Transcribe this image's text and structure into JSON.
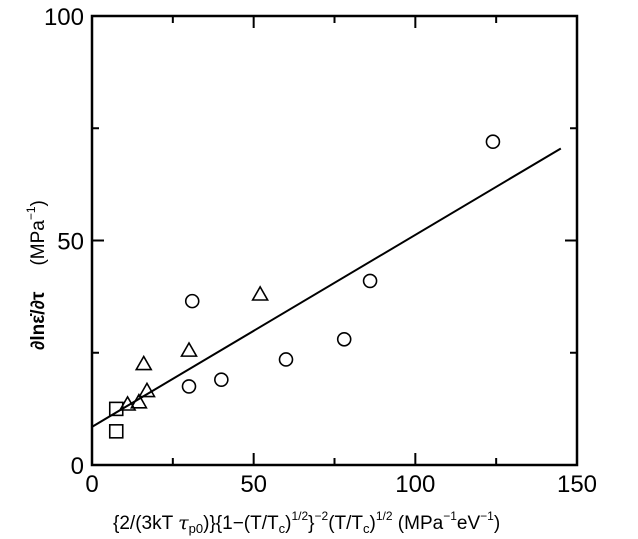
{
  "chart_data": {
    "type": "scatter",
    "xlabel": "{2/(3kT τp0)}{1−(T/Tc)^{1/2}}^{−2}(T/Tc)^{1/2} (MPa^{−1}eV^{−1})",
    "xlabel_parts": {
      "a": "{2/(3kT ",
      "tau": "τ",
      "p0": "p0",
      "b": ")}{1−(T/T",
      "c1": "c",
      "b2": ")",
      "half1": "1/2",
      "b3": "}",
      "neg2": "−2",
      "b4": "(T/T",
      "c2": "c",
      "b5": ")",
      "half2": "1/2",
      "b6": " (MPa",
      "neg1a": "−1",
      "b7": "eV",
      "neg1b": "−1",
      "b8": ")"
    },
    "ylabel": "∂lnε̇/∂τ (MPa^{−1})",
    "ylabel_parts": {
      "main": "∂lnε̇/∂τ",
      "unit_open": "(MPa",
      "unit_exp": "−1",
      "unit_close": ")"
    },
    "xlim": [
      0,
      150
    ],
    "ylim": [
      0,
      100
    ],
    "x_ticks": [
      0,
      50,
      100,
      150
    ],
    "y_ticks": [
      0,
      50,
      100
    ],
    "x_minor_ticks": [
      25,
      75,
      125
    ],
    "y_minor_ticks": [
      25,
      75
    ],
    "grid": false,
    "series": [
      {
        "marker": "square",
        "points": [
          [
            7.5,
            12.5
          ],
          [
            7.5,
            7.5
          ]
        ]
      },
      {
        "marker": "triangle",
        "points": [
          [
            11,
            13.5
          ],
          [
            14.5,
            14
          ],
          [
            16,
            22.5
          ],
          [
            17,
            16.5
          ],
          [
            30,
            25.5
          ],
          [
            52,
            38
          ]
        ]
      },
      {
        "marker": "circle",
        "points": [
          [
            30,
            17.5
          ],
          [
            31,
            36.5
          ],
          [
            40,
            19
          ],
          [
            60,
            23.5
          ],
          [
            78,
            28
          ],
          [
            86,
            41
          ],
          [
            124,
            72
          ]
        ]
      }
    ],
    "fit_line": {
      "x": [
        0,
        145
      ],
      "y": [
        8.5,
        70.5
      ]
    }
  }
}
